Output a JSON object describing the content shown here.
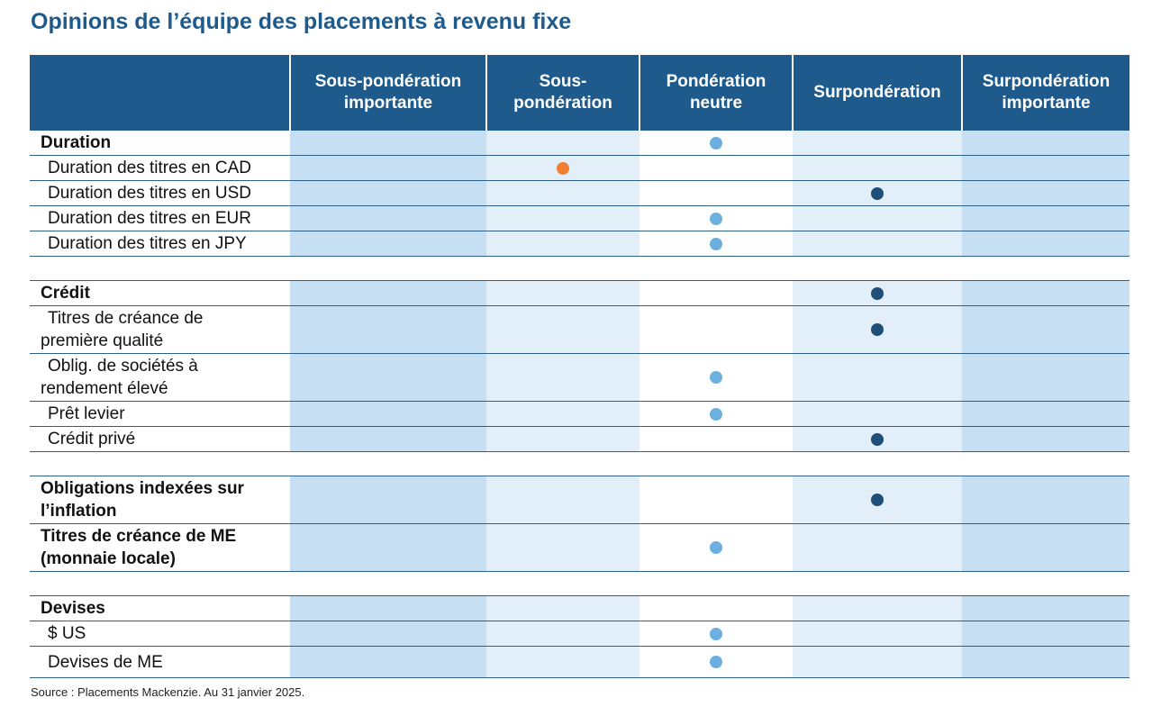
{
  "title": "Opinions de l’équipe des placements à revenu fixe",
  "columns": [
    {
      "line1": "Sous-pondération",
      "line2": "importante"
    },
    {
      "line1": "Sous-",
      "line2": "pondération"
    },
    {
      "line1": "Pondération",
      "line2": "neutre"
    },
    {
      "line1": "Surpondération",
      "line2": ""
    },
    {
      "line1": "Surpondération",
      "line2": "importante"
    }
  ],
  "colors": {
    "header_bg": "#1f5a8c",
    "light_blue_dot": "#6cb0e0",
    "dark_blue_dot": "#1f4e79",
    "orange_dot": "#f07f33"
  },
  "rows": [
    {
      "kind": "row",
      "line1": "Duration",
      "line2": "",
      "bold": true,
      "sub": false,
      "col": 3,
      "dot": "light_blue_dot",
      "h": "h27"
    },
    {
      "kind": "row",
      "line1": "Duration des titres en CAD",
      "line2": "",
      "bold": false,
      "sub": true,
      "col": 2,
      "dot": "orange_dot",
      "h": "h27"
    },
    {
      "kind": "row",
      "line1": "Duration des titres en USD",
      "line2": "",
      "bold": false,
      "sub": true,
      "col": 4,
      "dot": "dark_blue_dot",
      "h": "h27"
    },
    {
      "kind": "row",
      "line1": "Duration des titres en EUR",
      "line2": "",
      "bold": false,
      "sub": true,
      "col": 3,
      "dot": "light_blue_dot",
      "h": "h27"
    },
    {
      "kind": "row",
      "line1": "Duration des titres en JPY",
      "line2": "",
      "bold": false,
      "sub": true,
      "col": 3,
      "dot": "light_blue_dot",
      "h": "h27"
    },
    {
      "kind": "spacer"
    },
    {
      "kind": "row",
      "line1": "Crédit",
      "line2": "",
      "bold": true,
      "sub": false,
      "col": 4,
      "dot": "dark_blue_dot",
      "h": "h27"
    },
    {
      "kind": "row",
      "line1": "Titres de créance de",
      "line2": "première qualité",
      "bold": false,
      "sub": false,
      "col": 4,
      "dot": "dark_blue_dot",
      "h": "h52"
    },
    {
      "kind": "row",
      "line1": "Oblig. de sociétés à",
      "line2": "rendement élevé",
      "bold": false,
      "sub": false,
      "col": 3,
      "dot": "light_blue_dot",
      "h": "h52"
    },
    {
      "kind": "row",
      "line1": "Prêt levier",
      "line2": "",
      "bold": false,
      "sub": true,
      "col": 3,
      "dot": "light_blue_dot",
      "h": "h27"
    },
    {
      "kind": "row",
      "line1": "Crédit privé",
      "line2": "",
      "bold": false,
      "sub": true,
      "col": 4,
      "dot": "dark_blue_dot",
      "h": "h27"
    },
    {
      "kind": "spacer"
    },
    {
      "kind": "row",
      "line1": "Obligations indexées sur",
      "line2": "l’inflation",
      "bold": true,
      "sub": false,
      "col": 4,
      "dot": "dark_blue_dot",
      "h": "h52"
    },
    {
      "kind": "row",
      "line1": "Titres de créance de ME",
      "line2": "(monnaie locale)",
      "bold": true,
      "sub": false,
      "col": 3,
      "dot": "light_blue_dot",
      "h": "h52"
    },
    {
      "kind": "spacer"
    },
    {
      "kind": "row",
      "line1": "Devises",
      "line2": "",
      "bold": true,
      "sub": false,
      "col": 0,
      "dot": "",
      "h": "h27"
    },
    {
      "kind": "row",
      "line1": "$ US",
      "line2": "",
      "bold": false,
      "sub": true,
      "col": 3,
      "dot": "light_blue_dot",
      "h": "h27"
    },
    {
      "kind": "row",
      "line1": "Devises de ME",
      "line2": "",
      "bold": false,
      "sub": true,
      "col": 3,
      "dot": "light_blue_dot",
      "h": "h34"
    }
  ],
  "source": "Source : Placements Mackenzie. Au 31 janvier 2025."
}
